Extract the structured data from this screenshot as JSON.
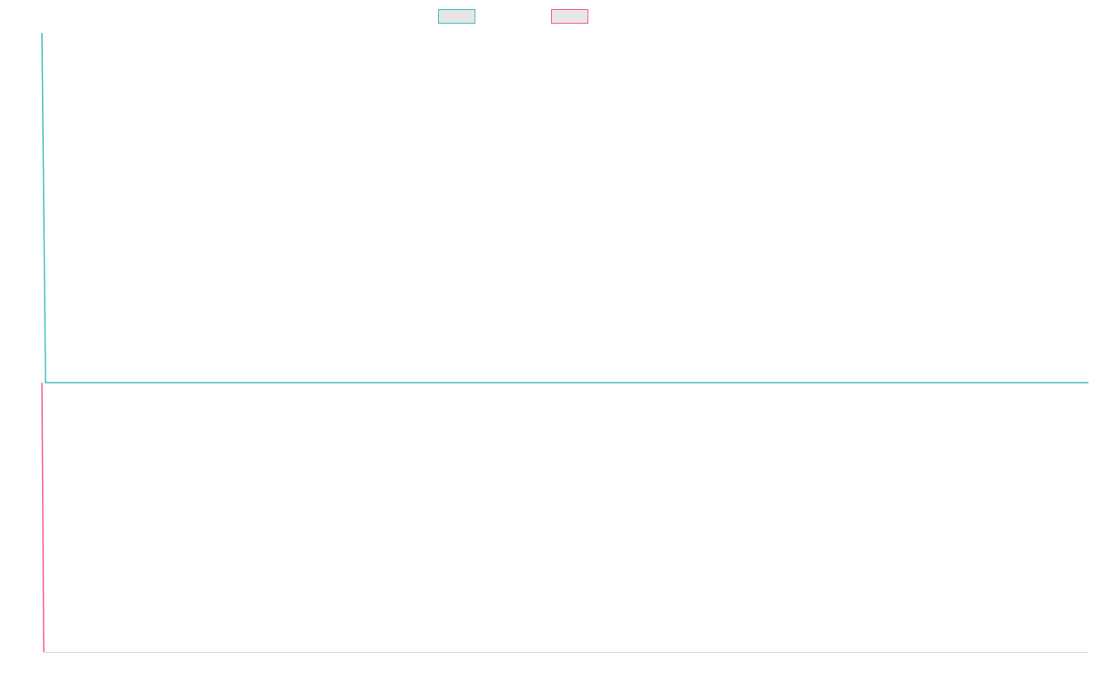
{
  "chart_data": {
    "type": "line",
    "series": [
      {
        "color": "#4bc0c0",
        "x": [
          0,
          4,
          1149
        ],
        "values": [
          100,
          43.5,
          43.5
        ]
      },
      {
        "color": "#ff6384",
        "x": [
          0,
          2
        ],
        "values": [
          43.5,
          0
        ]
      }
    ],
    "xlim": [
      0,
      1149
    ],
    "ylim": [
      0,
      100
    ],
    "grid": false
  }
}
